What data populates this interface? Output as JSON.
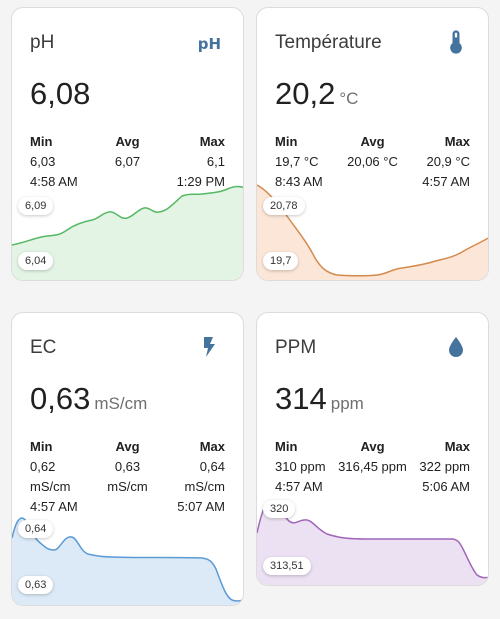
{
  "cards": [
    {
      "title": "pH",
      "icon": "ph-icon",
      "icon_text": "pH",
      "value": "6,08",
      "unit": "",
      "stats": {
        "min_label": "Min",
        "min_lines": [
          "6,03",
          "4:58 AM"
        ],
        "avg_label": "Avg",
        "avg_lines": [
          "6,07"
        ],
        "max_label": "Max",
        "max_lines": [
          "6,1",
          "1:29 PM"
        ]
      },
      "graph_high": "6,09",
      "graph_low": "6,04",
      "colors": {
        "line": "#55b864",
        "fill": "#e3f4e5",
        "icon": "#44739e"
      }
    },
    {
      "title": "Température",
      "icon": "thermometer-icon",
      "value": "20,2",
      "unit": "°C",
      "stats": {
        "min_label": "Min",
        "min_lines": [
          "19,7 °C",
          "8:43 AM"
        ],
        "avg_label": "Avg",
        "avg_lines": [
          "20,06 °C"
        ],
        "max_label": "Max",
        "max_lines": [
          "20,9 °C",
          "4:57 AM"
        ]
      },
      "graph_high": "20,78",
      "graph_low": "19,7",
      "colors": {
        "line": "#d58a4d",
        "fill": "#fbe6d7",
        "icon": "#44739e"
      }
    },
    {
      "title": "EC",
      "icon": "lightning-icon",
      "value": "0,63",
      "unit": "mS/cm",
      "stats": {
        "min_label": "Min",
        "min_lines": [
          "0,62",
          "mS/cm",
          "4:57 AM"
        ],
        "avg_label": "Avg",
        "avg_lines": [
          "0,63",
          "mS/cm"
        ],
        "max_label": "Max",
        "max_lines": [
          "0,64",
          "mS/cm",
          "5:07 AM"
        ]
      },
      "graph_high": "0,64",
      "graph_low": "0,63",
      "colors": {
        "line": "#5b9bd5",
        "fill": "#dce9f6",
        "icon": "#44739e"
      }
    },
    {
      "title": "PPM",
      "icon": "water-drop-icon",
      "value": "314",
      "unit": "ppm",
      "stats": {
        "min_label": "Min",
        "min_lines": [
          "310 ppm",
          "4:57 AM"
        ],
        "avg_label": "Avg",
        "avg_lines": [
          "316,45 ppm"
        ],
        "max_label": "Max",
        "max_lines": [
          "322 ppm",
          "5:06 AM"
        ]
      },
      "graph_high": "320",
      "graph_low": "313,51",
      "colors": {
        "line": "#a067b8",
        "fill": "#ece0f3",
        "icon": "#44739e"
      }
    }
  ]
}
